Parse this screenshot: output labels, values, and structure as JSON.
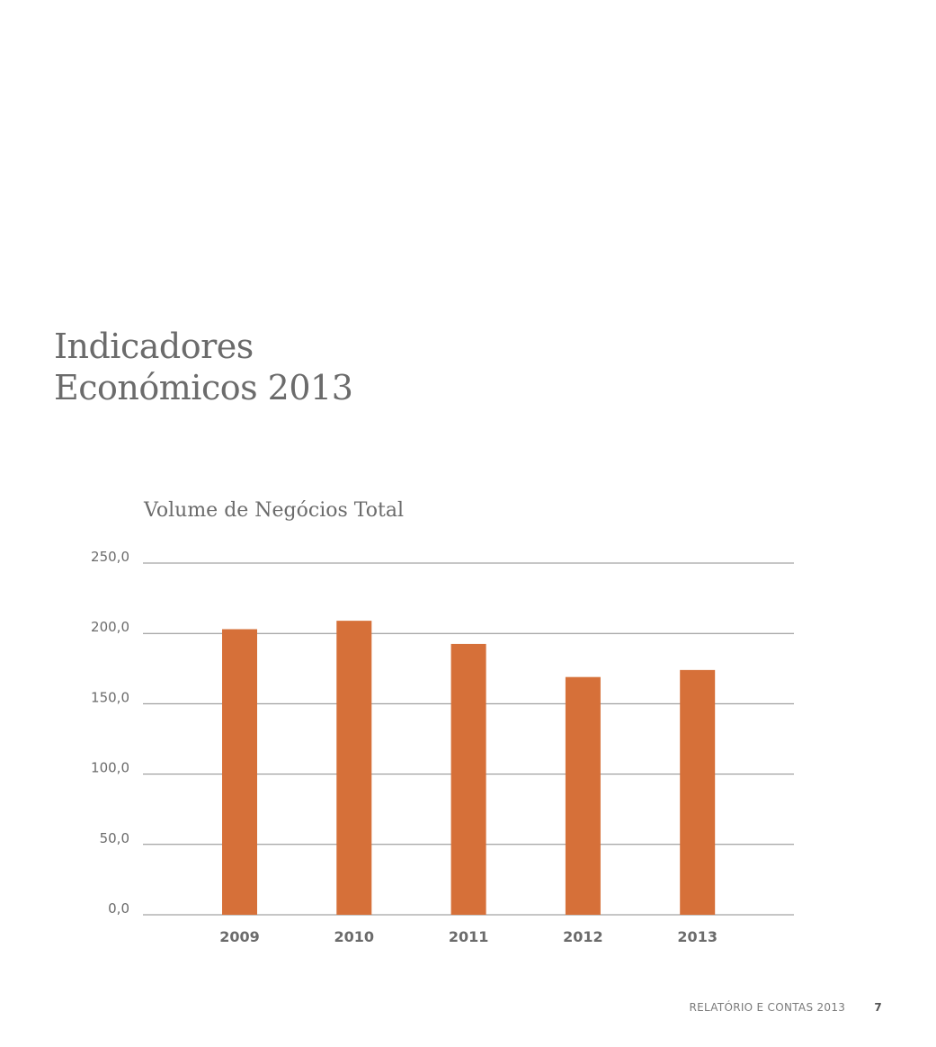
{
  "page": {
    "heading_line1": "Indicadores",
    "heading_line2": "Económicos 2013"
  },
  "footer": {
    "report_label": "RELATÓRIO E CONTAS 2013",
    "page_number": "7"
  },
  "colors": {
    "bar": "#d67039",
    "gridline": "#8c8c8c",
    "text": "#6b6b6b"
  },
  "chart_data": {
    "type": "bar",
    "title": "Volume de Negócios Total",
    "xlabel": "",
    "ylabel": "",
    "categories": [
      "2009",
      "2010",
      "2011",
      "2012",
      "2013"
    ],
    "values": [
      203.0,
      209.0,
      192.5,
      169.0,
      174.0
    ],
    "ylim": [
      0,
      250
    ],
    "yticks": [
      "0,0",
      "50,0",
      "100,0",
      "150,0",
      "200,0",
      "250,0"
    ],
    "ytick_values": [
      0,
      50,
      100,
      150,
      200,
      250
    ],
    "grid": true,
    "legend": "none"
  }
}
